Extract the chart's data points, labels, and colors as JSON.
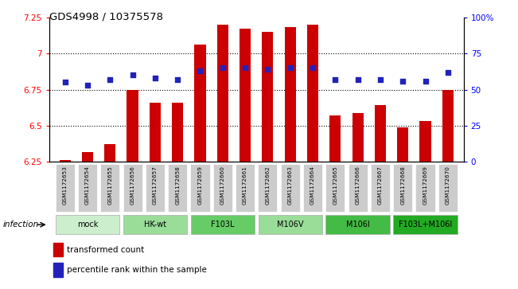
{
  "title": "GDS4998 / 10375578",
  "samples": [
    "GSM1172653",
    "GSM1172654",
    "GSM1172655",
    "GSM1172656",
    "GSM1172657",
    "GSM1172658",
    "GSM1172659",
    "GSM1172660",
    "GSM1172661",
    "GSM1172662",
    "GSM1172663",
    "GSM1172664",
    "GSM1172665",
    "GSM1172666",
    "GSM1172667",
    "GSM1172668",
    "GSM1172669",
    "GSM1172670"
  ],
  "bar_values": [
    6.26,
    6.32,
    6.37,
    6.75,
    6.66,
    6.66,
    7.06,
    7.2,
    7.17,
    7.15,
    7.18,
    7.2,
    6.57,
    6.59,
    6.64,
    6.49,
    6.53,
    6.75
  ],
  "dot_values": [
    55,
    53,
    57,
    60,
    58,
    57,
    63,
    65,
    65,
    64,
    65,
    65,
    57,
    57,
    57,
    56,
    56,
    62
  ],
  "ymin": 6.25,
  "ymax": 7.25,
  "ylim_right": [
    0,
    100
  ],
  "yticks_left": [
    6.25,
    6.5,
    6.75,
    7.0,
    7.25
  ],
  "yticks_right": [
    0,
    25,
    50,
    75,
    100
  ],
  "ytick_labels_left": [
    "6.25",
    "6.5",
    "6.75",
    "7",
    "7.25"
  ],
  "ytick_labels_right": [
    "0",
    "25",
    "50",
    "75",
    "100%"
  ],
  "hlines": [
    6.5,
    6.75,
    7.0
  ],
  "bar_color": "#cc0000",
  "dot_color": "#2222bb",
  "groups": [
    {
      "label": "mock",
      "start": 0,
      "end": 2,
      "color": "#cceecc"
    },
    {
      "label": "HK-wt",
      "start": 3,
      "end": 5,
      "color": "#99dd99"
    },
    {
      "label": "F103L",
      "start": 6,
      "end": 8,
      "color": "#66cc66"
    },
    {
      "label": "M106V",
      "start": 9,
      "end": 11,
      "color": "#99dd99"
    },
    {
      "label": "M106I",
      "start": 12,
      "end": 14,
      "color": "#44bb44"
    },
    {
      "label": "F103L+M106I",
      "start": 15,
      "end": 17,
      "color": "#22aa22"
    }
  ],
  "sample_box_color": "#cccccc",
  "infection_label": "infection",
  "legend_bar_label": "transformed count",
  "legend_dot_label": "percentile rank within the sample",
  "bg_color": "#ffffff"
}
